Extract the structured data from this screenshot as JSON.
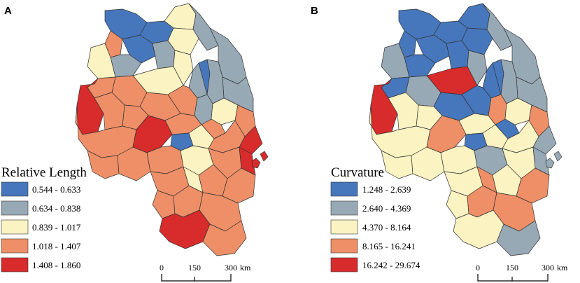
{
  "colors": {
    "class1": "#4677bd",
    "class2": "#98a9b6",
    "class3": "#fbf3c2",
    "class4": "#ef8f67",
    "class5": "#d82b2b",
    "border": "#333333"
  },
  "panels": [
    {
      "letter": "A",
      "legend": {
        "title": "Relative Length",
        "classes": [
          "0.544 - 0.633",
          "0.634 - 0.838",
          "0.839 - 1.017",
          "1.018 - 1.407",
          "1.408 - 1.860"
        ]
      },
      "scale": {
        "ticks": [
          "0",
          "150",
          "300"
        ],
        "unit": "km"
      }
    },
    {
      "letter": "B",
      "legend": {
        "title": "Curvature",
        "classes": [
          "1.248 - 2.639",
          "2.640 - 4.369",
          "4.370 - 8.164",
          "8.165 - 16.241",
          "16.242 - 29.674"
        ]
      },
      "scale": {
        "ticks": [
          "0",
          "150",
          "300"
        ],
        "unit": "km"
      }
    }
  ]
}
